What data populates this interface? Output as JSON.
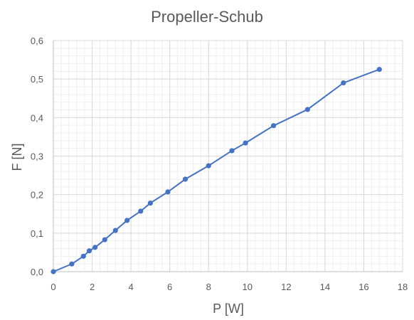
{
  "chart_data": {
    "type": "scatter",
    "title": "Propeller-Schub",
    "xlabel": "P [W]",
    "ylabel": "F [N]",
    "xlim": [
      0,
      18
    ],
    "ylim": [
      0,
      0.6
    ],
    "x_ticks": [
      "0",
      "2",
      "4",
      "6",
      "8",
      "10",
      "12",
      "14",
      "16",
      "18"
    ],
    "y_ticks": [
      "0,0",
      "0,1",
      "0,2",
      "0,3",
      "0,4",
      "0,5",
      "0,6"
    ],
    "grid": "major and minor",
    "legend": "none",
    "markers": true,
    "lines": true,
    "series": [
      {
        "color": "#4472c4",
        "x": [
          0,
          0.95,
          1.55,
          1.85,
          2.15,
          2.65,
          3.2,
          3.8,
          4.5,
          5.0,
          5.9,
          6.8,
          8.0,
          9.2,
          9.9,
          11.35,
          13.1,
          14.95,
          16.8
        ],
        "y": [
          0,
          0.02,
          0.04,
          0.054,
          0.063,
          0.083,
          0.107,
          0.133,
          0.157,
          0.178,
          0.207,
          0.24,
          0.275,
          0.314,
          0.334,
          0.379,
          0.421,
          0.49,
          0.525
        ]
      }
    ]
  }
}
